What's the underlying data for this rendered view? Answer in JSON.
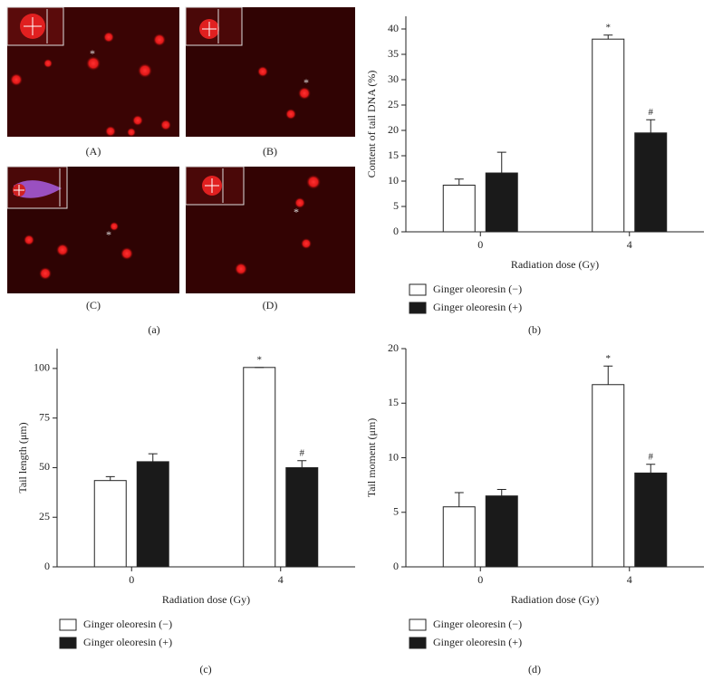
{
  "image_panel": {
    "labels": [
      "(A)",
      "(B)",
      "(C)",
      "(D)"
    ],
    "markers": [
      "*",
      "*",
      "*",
      "*"
    ],
    "caption": "(a)"
  },
  "chart_data": [
    {
      "type": "bar",
      "caption": "(b)",
      "categories": [
        "0",
        "4"
      ],
      "x_label": "Radiation dose (Gy)",
      "y_label": "Content of tail DNA (%)",
      "ylim": [
        0,
        42.5
      ],
      "yticks": [
        0,
        5,
        10,
        15,
        20,
        25,
        30,
        35,
        40
      ],
      "series": [
        {
          "name": "Ginger oleoresin (−)",
          "color": "#ffffff",
          "values": [
            9.2,
            38
          ],
          "errors": [
            1.2,
            0.8
          ],
          "annotations": [
            null,
            "*"
          ]
        },
        {
          "name": "Ginger oleoresin (+)",
          "color": "#1a1a1a",
          "values": [
            11.6,
            19.5
          ],
          "errors": [
            4.1,
            2.6
          ],
          "annotations": [
            null,
            "#"
          ]
        }
      ]
    },
    {
      "type": "bar",
      "caption": "(c)",
      "categories": [
        "0",
        "4"
      ],
      "x_label": "Radiation dose (Gy)",
      "y_label": "Tail length (μm)",
      "ylim": [
        0,
        110
      ],
      "yticks": [
        0,
        25,
        50,
        75,
        100
      ],
      "series": [
        {
          "name": "Ginger oleoresin (−)",
          "color": "#ffffff",
          "values": [
            43.5,
            100.5
          ],
          "errors": [
            2,
            0
          ],
          "annotations": [
            null,
            "*"
          ]
        },
        {
          "name": "Ginger oleoresin (+)",
          "color": "#1a1a1a",
          "values": [
            53,
            50
          ],
          "errors": [
            4,
            3.5
          ],
          "annotations": [
            null,
            "#"
          ]
        }
      ]
    },
    {
      "type": "bar",
      "caption": "(d)",
      "categories": [
        "0",
        "4"
      ],
      "x_label": "Radiation dose (Gy)",
      "y_label": "Tail moment (μm)",
      "ylim": [
        0,
        20
      ],
      "yticks": [
        0,
        5,
        10,
        15,
        20
      ],
      "series": [
        {
          "name": "Ginger oleoresin (−)",
          "color": "#ffffff",
          "values": [
            5.5,
            16.7
          ],
          "errors": [
            1.3,
            1.7
          ],
          "annotations": [
            null,
            "*"
          ]
        },
        {
          "name": "Ginger oleoresin (+)",
          "color": "#1a1a1a",
          "values": [
            6.5,
            8.6
          ],
          "errors": [
            0.6,
            0.8
          ],
          "annotations": [
            null,
            "#"
          ]
        }
      ]
    }
  ]
}
